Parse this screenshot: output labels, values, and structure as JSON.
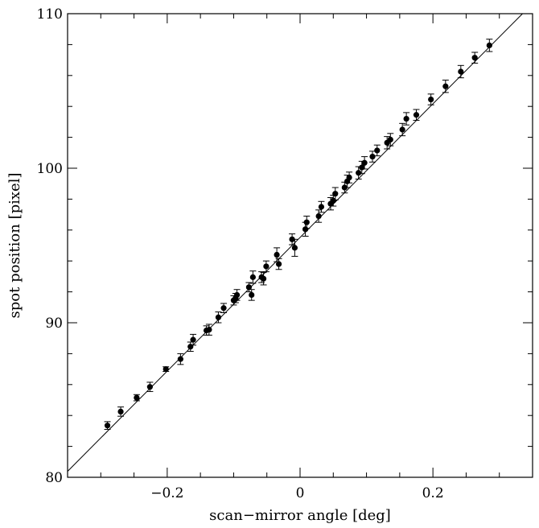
{
  "chart_data": {
    "type": "scatter",
    "title": "",
    "xlabel": "scan−mirror angle [deg]",
    "ylabel": "spot position [pixel]",
    "xlim": [
      -0.35,
      0.35
    ],
    "ylim": [
      80,
      110
    ],
    "x_tick_labels": [
      {
        "value": -0.2,
        "label": "−0.2"
      },
      {
        "value": 0,
        "label": "0"
      },
      {
        "value": 0.2,
        "label": "0.2"
      }
    ],
    "y_tick_labels": [
      {
        "value": 80,
        "label": "80"
      },
      {
        "value": 90,
        "label": "90"
      },
      {
        "value": 100,
        "label": "100"
      },
      {
        "value": 110,
        "label": "110"
      }
    ],
    "minor_tick_x": 0.05,
    "minor_tick_y": 2,
    "grid": false,
    "fit_line": {
      "slope": 43.24,
      "intercept": 95.52
    },
    "series": [
      {
        "marker": "filled-circle",
        "color": "#000000",
        "points": [
          {
            "x": -0.29,
            "y": 83.35,
            "err": 0.25
          },
          {
            "x": -0.27,
            "y": 84.25,
            "err": 0.3
          },
          {
            "x": -0.246,
            "y": 85.15,
            "err": 0.2
          },
          {
            "x": -0.226,
            "y": 85.85,
            "err": 0.3
          },
          {
            "x": -0.202,
            "y": 87.0,
            "err": 0.15
          },
          {
            "x": -0.18,
            "y": 87.65,
            "err": 0.35
          },
          {
            "x": -0.165,
            "y": 88.45,
            "err": 0.3
          },
          {
            "x": -0.161,
            "y": 88.9,
            "err": 0.35
          },
          {
            "x": -0.141,
            "y": 89.5,
            "err": 0.3
          },
          {
            "x": -0.137,
            "y": 89.55,
            "err": 0.35
          },
          {
            "x": -0.123,
            "y": 90.35,
            "err": 0.35
          },
          {
            "x": -0.115,
            "y": 90.95,
            "err": 0.3
          },
          {
            "x": -0.1,
            "y": 91.45,
            "err": 0.3
          },
          {
            "x": -0.097,
            "y": 91.6,
            "err": 0.3
          },
          {
            "x": -0.095,
            "y": 91.8,
            "err": 0.35
          },
          {
            "x": -0.077,
            "y": 92.3,
            "err": 0.3
          },
          {
            "x": -0.073,
            "y": 91.8,
            "err": 0.35
          },
          {
            "x": -0.071,
            "y": 92.95,
            "err": 0.4
          },
          {
            "x": -0.058,
            "y": 92.95,
            "err": 0.35
          },
          {
            "x": -0.055,
            "y": 92.85,
            "err": 0.4
          },
          {
            "x": -0.051,
            "y": 93.65,
            "err": 0.35
          },
          {
            "x": -0.035,
            "y": 94.4,
            "err": 0.45
          },
          {
            "x": -0.032,
            "y": 93.8,
            "err": 0.35
          },
          {
            "x": -0.012,
            "y": 95.4,
            "err": 0.35
          },
          {
            "x": -0.008,
            "y": 94.85,
            "err": 0.55
          },
          {
            "x": 0.008,
            "y": 96.05,
            "err": 0.45
          },
          {
            "x": 0.01,
            "y": 96.5,
            "err": 0.4
          },
          {
            "x": 0.028,
            "y": 96.9,
            "err": 0.4
          },
          {
            "x": 0.032,
            "y": 97.5,
            "err": 0.35
          },
          {
            "x": 0.046,
            "y": 97.7,
            "err": 0.4
          },
          {
            "x": 0.05,
            "y": 97.9,
            "err": 0.35
          },
          {
            "x": 0.053,
            "y": 98.35,
            "err": 0.4
          },
          {
            "x": 0.067,
            "y": 98.75,
            "err": 0.35
          },
          {
            "x": 0.071,
            "y": 99.15,
            "err": 0.4
          },
          {
            "x": 0.074,
            "y": 99.4,
            "err": 0.35
          },
          {
            "x": 0.088,
            "y": 99.7,
            "err": 0.4
          },
          {
            "x": 0.093,
            "y": 100.05,
            "err": 0.4
          },
          {
            "x": 0.097,
            "y": 100.35,
            "err": 0.4
          },
          {
            "x": 0.109,
            "y": 100.75,
            "err": 0.35
          },
          {
            "x": 0.116,
            "y": 101.15,
            "err": 0.35
          },
          {
            "x": 0.131,
            "y": 101.65,
            "err": 0.4
          },
          {
            "x": 0.136,
            "y": 101.85,
            "err": 0.4
          },
          {
            "x": 0.154,
            "y": 102.5,
            "err": 0.4
          },
          {
            "x": 0.16,
            "y": 103.2,
            "err": 0.4
          },
          {
            "x": 0.175,
            "y": 103.45,
            "err": 0.35
          },
          {
            "x": 0.197,
            "y": 104.45,
            "err": 0.35
          },
          {
            "x": 0.219,
            "y": 105.3,
            "err": 0.4
          },
          {
            "x": 0.242,
            "y": 106.25,
            "err": 0.4
          },
          {
            "x": 0.263,
            "y": 107.15,
            "err": 0.35
          },
          {
            "x": 0.285,
            "y": 107.95,
            "err": 0.4
          }
        ]
      }
    ]
  }
}
